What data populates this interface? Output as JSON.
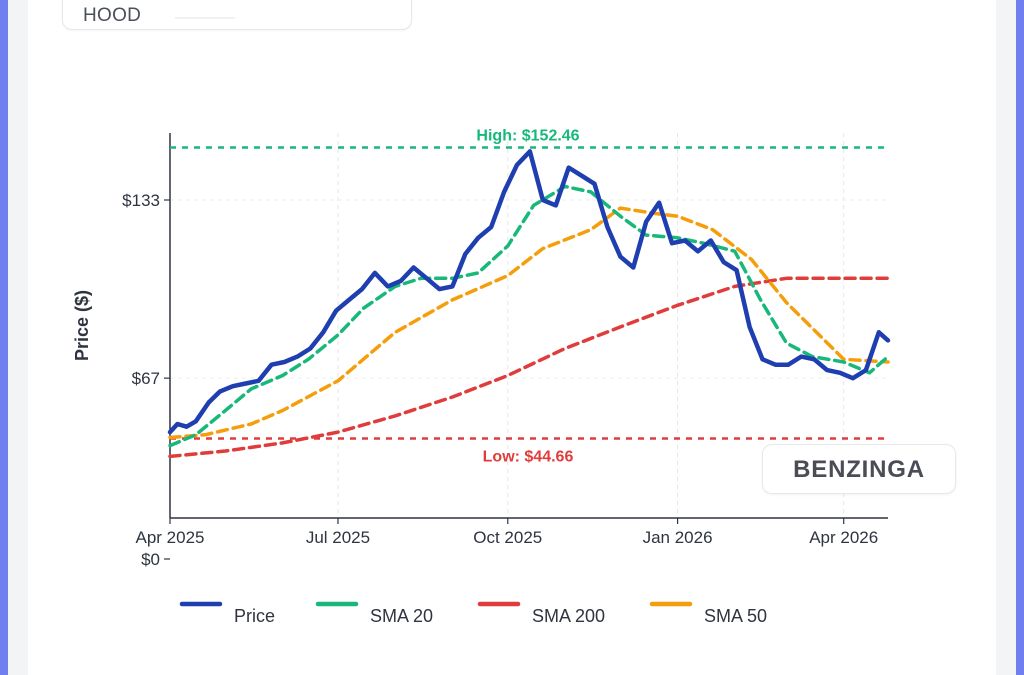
{
  "ticker": {
    "symbol": "HOOD"
  },
  "brand": {
    "logo_text": "BENZINGA"
  },
  "chart_data": {
    "type": "line",
    "title": "",
    "xlabel": "",
    "ylabel": "Price ($)",
    "x_range": [
      "2025-04-01",
      "2026-04-25"
    ],
    "ylim": [
      0,
      155
    ],
    "y_ticks": [
      {
        "value": 0,
        "label": "$0"
      },
      {
        "value": 67,
        "label": "$67"
      },
      {
        "value": 133,
        "label": "$133"
      }
    ],
    "x_ticks": [
      {
        "date": "2025-04-01",
        "label": "Apr 2025"
      },
      {
        "date": "2025-07-01",
        "label": "Jul 2025"
      },
      {
        "date": "2025-10-01",
        "label": "Oct 2025"
      },
      {
        "date": "2026-01-01",
        "label": "Jan 2026"
      },
      {
        "date": "2026-04-01",
        "label": "Apr 2026"
      }
    ],
    "grid": true,
    "legend_position": "bottom",
    "colors": {
      "price": "#1f3fb0",
      "sma20": "#17b87a",
      "sma200": "#e03c3c",
      "sma50": "#f59e0b",
      "high_line": "#17b87a",
      "low_line": "#e03c3c"
    },
    "annotations": {
      "high": {
        "label": "High: $152.46",
        "value": 152.46
      },
      "low": {
        "label": "Low: $44.66",
        "value": 44.66
      }
    },
    "legend": [
      "Price",
      "SMA 20",
      "SMA 200",
      "SMA 50"
    ],
    "series": [
      {
        "name": "Price",
        "key": "price",
        "x": [
          "2025-04-01",
          "2025-04-05",
          "2025-04-10",
          "2025-04-15",
          "2025-04-22",
          "2025-04-28",
          "2025-05-05",
          "2025-05-12",
          "2025-05-19",
          "2025-05-26",
          "2025-06-02",
          "2025-06-09",
          "2025-06-16",
          "2025-06-23",
          "2025-06-30",
          "2025-07-07",
          "2025-07-14",
          "2025-07-21",
          "2025-07-28",
          "2025-08-04",
          "2025-08-11",
          "2025-08-18",
          "2025-08-25",
          "2025-09-01",
          "2025-09-08",
          "2025-09-15",
          "2025-09-22",
          "2025-09-29",
          "2025-10-06",
          "2025-10-13",
          "2025-10-20",
          "2025-10-27",
          "2025-11-03",
          "2025-11-10",
          "2025-11-17",
          "2025-11-24",
          "2025-12-01",
          "2025-12-08",
          "2025-12-15",
          "2025-12-22",
          "2025-12-29",
          "2026-01-05",
          "2026-01-12",
          "2026-01-19",
          "2026-01-26",
          "2026-02-02",
          "2026-02-09",
          "2026-02-16",
          "2026-02-23",
          "2026-03-02",
          "2026-03-09",
          "2026-03-16",
          "2026-03-23",
          "2026-03-30",
          "2026-04-06",
          "2026-04-13",
          "2026-04-20",
          "2026-04-25"
        ],
        "values": [
          47,
          50,
          49,
          51,
          58,
          62,
          64,
          65,
          66,
          72,
          73,
          75,
          78,
          84,
          92,
          96,
          100,
          106,
          101,
          103,
          108,
          104,
          100,
          101,
          113,
          119,
          123,
          136,
          146,
          151,
          133,
          131,
          145,
          142,
          139,
          123,
          112,
          108,
          125,
          132,
          117,
          118,
          114,
          118,
          110,
          107,
          86,
          74,
          72,
          72,
          75,
          74,
          70,
          69,
          67,
          70,
          84,
          81
        ]
      },
      {
        "name": "SMA 20",
        "key": "sma20",
        "x": [
          "2025-04-01",
          "2025-04-15",
          "2025-05-01",
          "2025-05-15",
          "2025-06-01",
          "2025-06-15",
          "2025-07-01",
          "2025-07-15",
          "2025-08-01",
          "2025-08-15",
          "2025-09-01",
          "2025-09-15",
          "2025-10-01",
          "2025-10-15",
          "2025-11-01",
          "2025-11-15",
          "2025-12-01",
          "2025-12-15",
          "2026-01-01",
          "2026-01-15",
          "2026-02-01",
          "2026-02-15",
          "2026-03-01",
          "2026-03-15",
          "2026-04-01",
          "2026-04-15",
          "2026-04-25"
        ],
        "values": [
          42,
          46,
          55,
          63,
          68,
          74,
          83,
          93,
          101,
          104,
          104,
          106,
          116,
          131,
          138,
          136,
          127,
          120,
          119,
          117,
          114,
          96,
          80,
          75,
          73,
          69,
          75
        ]
      },
      {
        "name": "SMA 200",
        "key": "sma200",
        "x": [
          "2025-04-01",
          "2025-05-01",
          "2025-06-01",
          "2025-07-01",
          "2025-08-01",
          "2025-09-01",
          "2025-10-01",
          "2025-11-01",
          "2025-12-01",
          "2026-01-01",
          "2026-02-01",
          "2026-03-01",
          "2026-04-01",
          "2026-04-25"
        ],
        "values": [
          38,
          40,
          43,
          47,
          53,
          60,
          68,
          78,
          86,
          94,
          101,
          104,
          104,
          104
        ]
      },
      {
        "name": "SMA 50",
        "key": "sma50",
        "x": [
          "2025-04-01",
          "2025-04-20",
          "2025-05-15",
          "2025-06-01",
          "2025-07-01",
          "2025-08-01",
          "2025-09-01",
          "2025-10-01",
          "2025-10-20",
          "2025-11-15",
          "2025-12-01",
          "2025-12-20",
          "2026-01-01",
          "2026-01-20",
          "2026-02-10",
          "2026-03-01",
          "2026-04-01",
          "2026-04-25"
        ],
        "values": [
          45,
          46,
          50,
          55,
          66,
          84,
          96,
          105,
          115,
          122,
          130,
          128,
          127,
          122,
          111,
          95,
          74,
          73
        ]
      }
    ]
  }
}
